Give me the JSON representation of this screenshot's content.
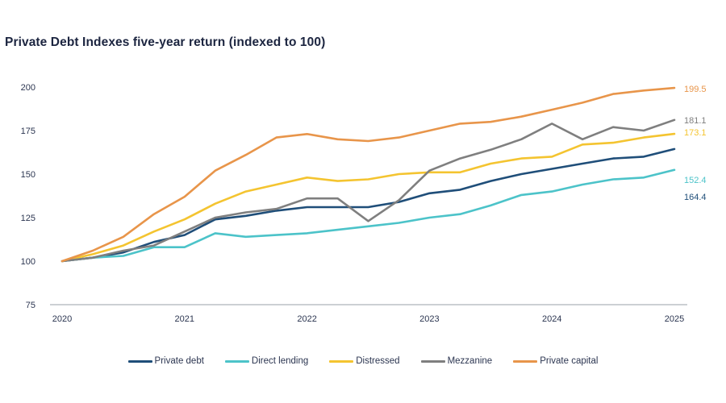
{
  "chart_data": {
    "type": "line",
    "title": "Private Debt Indexes five-year return (indexed to 100)",
    "xlabel": "",
    "ylabel": "",
    "ylim": [
      75,
      200
    ],
    "yticks": [
      75,
      100,
      125,
      150,
      175,
      200
    ],
    "xlim": [
      2020,
      2025
    ],
    "xticks": [
      "2020",
      "2021",
      "2022",
      "2023",
      "2024",
      "2025"
    ],
    "grid": false,
    "legend_position": "bottom",
    "x": [
      2020.0,
      2020.25,
      2020.5,
      2020.75,
      2021.0,
      2021.25,
      2021.5,
      2021.75,
      2022.0,
      2022.25,
      2022.5,
      2022.75,
      2023.0,
      2023.25,
      2023.5,
      2023.75,
      2024.0,
      2024.25,
      2024.5,
      2024.75,
      2025.0
    ],
    "series": [
      {
        "name": "Private debt",
        "color": "#1f4e79",
        "end_label": "164.4",
        "values": [
          100,
          102,
          105,
          111,
          115,
          124,
          126,
          129,
          131,
          131,
          131,
          134,
          139,
          141,
          146,
          150,
          153,
          156,
          159,
          160,
          164.4
        ]
      },
      {
        "name": "Direct lending",
        "color": "#4cc3c9",
        "end_label": "152.4",
        "values": [
          100,
          102,
          103,
          108,
          108,
          116,
          114,
          115,
          116,
          118,
          120,
          122,
          125,
          127,
          132,
          138,
          140,
          144,
          147,
          148,
          152.4
        ]
      },
      {
        "name": "Distressed",
        "color": "#f4c430",
        "end_label": "173.1",
        "values": [
          100,
          104,
          109,
          117,
          124,
          133,
          140,
          144,
          148,
          146,
          147,
          150,
          151,
          151,
          156,
          159,
          160,
          167,
          168,
          171,
          173.1
        ]
      },
      {
        "name": "Mezzanine",
        "color": "#7f7f7f",
        "end_label": "181.1",
        "values": [
          100,
          102,
          106,
          109,
          117,
          125,
          128,
          130,
          136,
          136,
          123,
          135,
          152,
          159,
          164,
          170,
          179,
          170,
          177,
          175,
          181.1
        ]
      },
      {
        "name": "Private capital",
        "color": "#e8954a",
        "end_label": "199.5",
        "values": [
          100,
          106,
          114,
          127,
          137,
          152,
          161,
          171,
          173,
          170,
          169,
          171,
          175,
          179,
          180,
          183,
          187,
          191,
          196,
          198,
          199.5
        ]
      }
    ]
  }
}
